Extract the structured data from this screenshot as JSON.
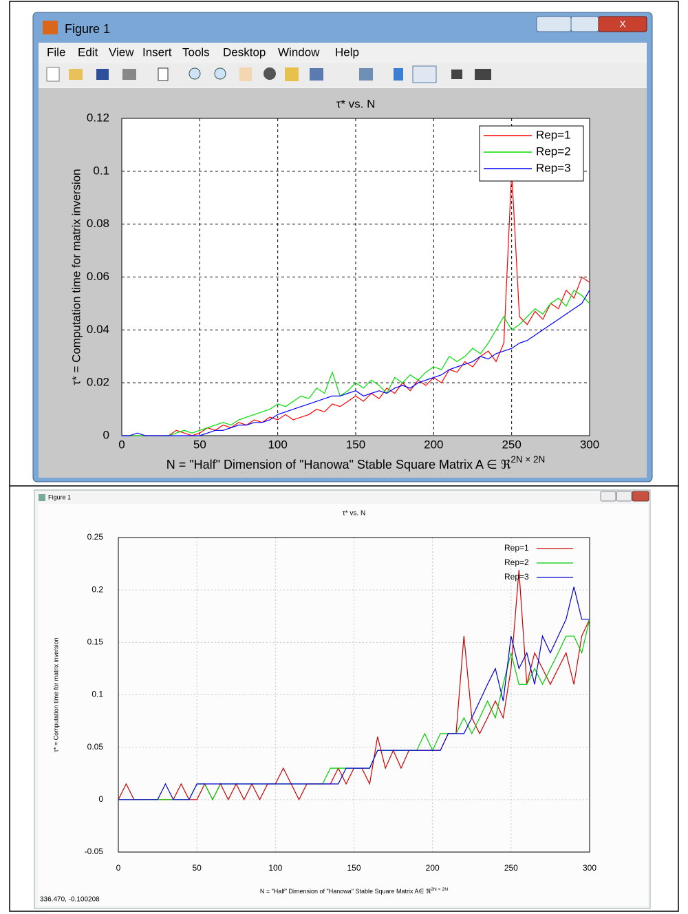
{
  "windows": [
    {
      "title": "Figure 1",
      "menu": [
        "File",
        "Edit",
        "View",
        "Insert",
        "Tools",
        "Desktop",
        "Window",
        "Help"
      ]
    },
    {
      "title": "Figure 1",
      "status": "336.470, -0.100208"
    }
  ],
  "chart_data": [
    {
      "type": "line",
      "title": "τ* vs. N",
      "xlabel": "N = \"Half\" Dimension of \"Hanowa\" Stable Square Matrix A ∈ ℜ",
      "xlabel_superscript": "2N × 2N",
      "ylabel": "τ* = Computation time for matrix inversion",
      "xlim": [
        0,
        300
      ],
      "xticks": [
        0,
        50,
        100,
        150,
        200,
        250,
        300
      ],
      "ylim": [
        0,
        0.12
      ],
      "yticks": [
        0,
        0.02,
        0.04,
        0.06,
        0.08,
        0.1,
        0.12
      ],
      "grid": true,
      "legend": "upper right",
      "x": [
        0,
        5,
        10,
        15,
        20,
        25,
        30,
        35,
        40,
        45,
        50,
        55,
        60,
        65,
        70,
        75,
        80,
        85,
        90,
        95,
        100,
        105,
        110,
        115,
        120,
        125,
        130,
        135,
        140,
        145,
        150,
        155,
        160,
        165,
        170,
        175,
        180,
        185,
        190,
        195,
        200,
        205,
        210,
        215,
        220,
        225,
        230,
        235,
        240,
        245,
        250,
        255,
        260,
        265,
        270,
        275,
        280,
        285,
        290,
        295,
        300
      ],
      "series": [
        {
          "name": "Rep=1",
          "color": "#ff0000",
          "values": [
            0,
            0,
            0,
            0,
            0,
            0,
            0,
            0.002,
            0.001,
            0,
            0.001,
            0.003,
            0.002,
            0.004,
            0.003,
            0.005,
            0.004,
            0.006,
            0.005,
            0.007,
            0.006,
            0.008,
            0.006,
            0.007,
            0.008,
            0.01,
            0.009,
            0.012,
            0.011,
            0.013,
            0.015,
            0.013,
            0.016,
            0.014,
            0.018,
            0.016,
            0.02,
            0.017,
            0.021,
            0.019,
            0.022,
            0.02,
            0.025,
            0.024,
            0.028,
            0.026,
            0.03,
            0.032,
            0.028,
            0.035,
            0.1,
            0.045,
            0.042,
            0.047,
            0.044,
            0.05,
            0.048,
            0.055,
            0.052,
            0.06,
            0.058
          ]
        },
        {
          "name": "Rep=2",
          "color": "#00dd00",
          "values": [
            0,
            0,
            0,
            0,
            0,
            0,
            0,
            0.001,
            0.002,
            0.001,
            0.002,
            0.003,
            0.004,
            0.005,
            0.004,
            0.006,
            0.007,
            0.008,
            0.009,
            0.01,
            0.012,
            0.011,
            0.013,
            0.015,
            0.014,
            0.018,
            0.016,
            0.024,
            0.015,
            0.017,
            0.02,
            0.018,
            0.021,
            0.019,
            0.016,
            0.022,
            0.02,
            0.023,
            0.021,
            0.024,
            0.026,
            0.025,
            0.03,
            0.028,
            0.03,
            0.033,
            0.031,
            0.035,
            0.04,
            0.045,
            0.04,
            0.042,
            0.045,
            0.048,
            0.046,
            0.05,
            0.052,
            0.049,
            0.055,
            0.053,
            0.05
          ]
        },
        {
          "name": "Rep=3",
          "color": "#0000ff",
          "values": [
            0,
            0,
            0.001,
            0,
            0,
            0,
            0,
            0,
            0,
            0,
            0,
            0.001,
            0.002,
            0.002,
            0.003,
            0.004,
            0.004,
            0.005,
            0.005,
            0.006,
            0.008,
            0.009,
            0.01,
            0.011,
            0.012,
            0.013,
            0.014,
            0.015,
            0.015,
            0.016,
            0.017,
            0.015,
            0.016,
            0.017,
            0.016,
            0.018,
            0.019,
            0.018,
            0.02,
            0.021,
            0.022,
            0.023,
            0.025,
            0.026,
            0.027,
            0.028,
            0.03,
            0.029,
            0.031,
            0.032,
            0.033,
            0.035,
            0.036,
            0.038,
            0.04,
            0.042,
            0.044,
            0.046,
            0.048,
            0.05,
            0.055
          ]
        }
      ]
    },
    {
      "type": "line",
      "title": "τ* vs. N",
      "xlabel": "N = \"Half\" Dimension of \"Hanowa\" Stable Square Matrix A∈ ℜ",
      "xlabel_superscript": "2N × 2N",
      "ylabel": "τ* = Computation time for matrix inversion",
      "xlim": [
        0,
        300
      ],
      "xticks": [
        0,
        50,
        100,
        150,
        200,
        250,
        300
      ],
      "ylim": [
        -0.05,
        0.25
      ],
      "yticks": [
        -0.05,
        0,
        0.05,
        0.1,
        0.15,
        0.2,
        0.25
      ],
      "grid": true,
      "legend": "upper right",
      "x": [
        0,
        5,
        10,
        15,
        20,
        25,
        30,
        35,
        40,
        45,
        50,
        55,
        60,
        65,
        70,
        75,
        80,
        85,
        90,
        95,
        100,
        105,
        110,
        115,
        120,
        125,
        130,
        135,
        140,
        145,
        150,
        155,
        160,
        165,
        170,
        175,
        180,
        185,
        190,
        195,
        200,
        205,
        210,
        215,
        220,
        225,
        230,
        235,
        240,
        245,
        250,
        255,
        260,
        265,
        270,
        275,
        280,
        285,
        290,
        295,
        300
      ],
      "series": [
        {
          "name": "Rep=1",
          "color": "#cc0000",
          "values": [
            0,
            0.015,
            0,
            0,
            0,
            0,
            0,
            0,
            0.015,
            0,
            0,
            0.015,
            0,
            0.015,
            0,
            0.015,
            0,
            0.015,
            0,
            0.015,
            0.015,
            0.03,
            0.015,
            0,
            0.015,
            0.015,
            0.015,
            0.015,
            0.03,
            0.015,
            0.03,
            0.03,
            0.015,
            0.06,
            0.03,
            0.047,
            0.03,
            0.047,
            0.047,
            0.047,
            0.047,
            0.047,
            0.063,
            0.063,
            0.156,
            0.078,
            0.063,
            0.078,
            0.094,
            0.078,
            0.125,
            0.219,
            0.11,
            0.14,
            0.125,
            0.11,
            0.125,
            0.14,
            0.11,
            0.156,
            0.172
          ]
        },
        {
          "name": "Rep=2",
          "color": "#00cc00",
          "values": [
            0,
            0,
            0,
            0,
            0,
            0,
            0,
            0,
            0,
            0,
            0.015,
            0.015,
            0,
            0.015,
            0.015,
            0.015,
            0.015,
            0.015,
            0.015,
            0.015,
            0.015,
            0.015,
            0.015,
            0.015,
            0.015,
            0.015,
            0.015,
            0.03,
            0.03,
            0.03,
            0.03,
            0.03,
            0.03,
            0.047,
            0.047,
            0.047,
            0.047,
            0.047,
            0.047,
            0.063,
            0.047,
            0.063,
            0.063,
            0.063,
            0.078,
            0.063,
            0.078,
            0.094,
            0.078,
            0.11,
            0.14,
            0.11,
            0.11,
            0.125,
            0.11,
            0.125,
            0.14,
            0.156,
            0.156,
            0.14,
            0.172
          ]
        },
        {
          "name": "Rep=3",
          "color": "#0000cc",
          "values": [
            0,
            0,
            0,
            0,
            0,
            0,
            0.015,
            0,
            0,
            0,
            0.015,
            0.015,
            0.015,
            0.015,
            0.015,
            0.015,
            0.015,
            0.015,
            0.015,
            0.015,
            0.015,
            0.015,
            0.015,
            0.015,
            0.015,
            0.015,
            0.015,
            0.015,
            0.015,
            0.03,
            0.03,
            0.03,
            0.03,
            0.047,
            0.047,
            0.047,
            0.047,
            0.047,
            0.047,
            0.047,
            0.047,
            0.047,
            0.063,
            0.063,
            0.063,
            0.078,
            0.094,
            0.11,
            0.125,
            0.094,
            0.156,
            0.125,
            0.14,
            0.11,
            0.156,
            0.14,
            0.156,
            0.172,
            0.203,
            0.172,
            0.172
          ]
        }
      ]
    }
  ]
}
